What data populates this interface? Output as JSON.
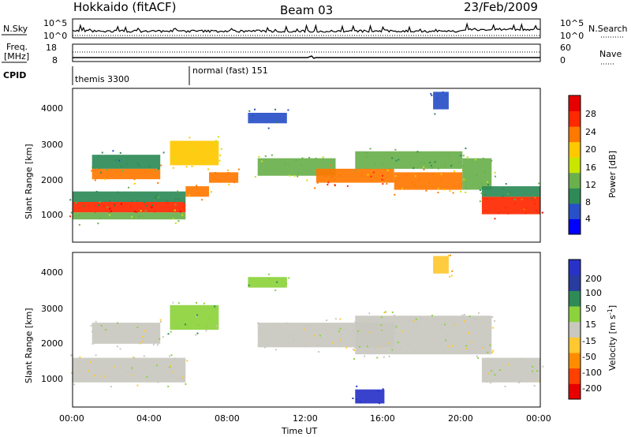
{
  "header": {
    "title_left": "Hokkaido (fitACF)",
    "title_center": "Beam 03",
    "title_right": "23/Feb/2009"
  },
  "strip_panels": {
    "nsky_label": "N.Sky",
    "nsky_ticks": [
      "10^5",
      "10^0"
    ],
    "nsearch_label": "N.Search",
    "nsearch_ticks": [
      "10^5",
      "10^0"
    ],
    "freq_label_line1": "Freq.",
    "freq_label_line2": "[MHz]",
    "freq_ticks": [
      "18",
      "8"
    ],
    "nave_label": "Nave",
    "nave_ticks": [
      "60",
      "0"
    ],
    "cpid_label": "CPID",
    "cpid_modes": [
      {
        "name": "themis 3300",
        "start_hour": 0.0
      },
      {
        "name": "normal (fast) 151",
        "start_hour": 6.0
      }
    ]
  },
  "axes": {
    "ylabel": "Slant Range [km]",
    "xlabel": "Time UT",
    "y_ticks": [
      "1000",
      "2000",
      "3000",
      "4000"
    ],
    "x_ticks": [
      "00:00",
      "04:00",
      "08:00",
      "12:00",
      "16:00",
      "20:00",
      "00:00"
    ]
  },
  "colorbars": {
    "power_label": "Power [dB]",
    "power_ticks": [
      "4",
      "8",
      "12",
      "16",
      "20",
      "24",
      "28"
    ],
    "velocity_label_main": "Velocity [m s",
    "velocity_label_sup": "-1",
    "velocity_label_end": "]",
    "velocity_ticks": [
      "-200",
      "-100",
      "-50",
      "-15",
      "15",
      "50",
      "100",
      "200"
    ]
  },
  "chart_data": [
    {
      "type": "heatmap",
      "panel": "power",
      "x_unit": "hours UT",
      "xlim": [
        0,
        24
      ],
      "ylim": [
        200,
        4600
      ],
      "colorscale": {
        "min": 0,
        "max": 32,
        "colors": [
          "#0000ff",
          "#2850c8",
          "#2e8b57",
          "#6ab04c",
          "#c8e600",
          "#ffc800",
          "#ff7800",
          "#ff2800",
          "#e60000"
        ]
      },
      "regions": [
        {
          "t0": 0.0,
          "t1": 5.8,
          "r0": 1050,
          "r1": 1350,
          "value": 28
        },
        {
          "t0": 0.0,
          "t1": 5.8,
          "r0": 850,
          "r1": 1050,
          "value": 14
        },
        {
          "t0": 0.0,
          "t1": 5.8,
          "r0": 1350,
          "r1": 1650,
          "value": 10
        },
        {
          "t0": 5.8,
          "t1": 7.0,
          "r0": 1500,
          "r1": 1800,
          "value": 22
        },
        {
          "t0": 1.0,
          "t1": 4.5,
          "r0": 2000,
          "r1": 2300,
          "value": 22
        },
        {
          "t0": 1.0,
          "t1": 4.5,
          "r0": 2300,
          "r1": 2700,
          "value": 9
        },
        {
          "t0": 5.0,
          "t1": 7.5,
          "r0": 2400,
          "r1": 3100,
          "value": 18
        },
        {
          "t0": 7.0,
          "t1": 8.5,
          "r0": 1900,
          "r1": 2200,
          "value": 22
        },
        {
          "t0": 9.5,
          "t1": 13.5,
          "r0": 2100,
          "r1": 2600,
          "value": 14
        },
        {
          "t0": 12.5,
          "t1": 16.5,
          "r0": 1900,
          "r1": 2300,
          "value": 24
        },
        {
          "t0": 14.5,
          "t1": 20.0,
          "r0": 2300,
          "r1": 2800,
          "value": 12
        },
        {
          "t0": 16.5,
          "t1": 20.0,
          "r0": 1700,
          "r1": 2200,
          "value": 22
        },
        {
          "t0": 20.0,
          "t1": 21.5,
          "r0": 1700,
          "r1": 2600,
          "value": 14
        },
        {
          "t0": 21.0,
          "t1": 24.0,
          "r0": 1000,
          "r1": 1500,
          "value": 26
        },
        {
          "t0": 21.0,
          "t1": 24.0,
          "r0": 1500,
          "r1": 1800,
          "value": 10
        },
        {
          "t0": 18.5,
          "t1": 19.3,
          "r0": 4000,
          "r1": 4500,
          "value": 6
        },
        {
          "t0": 9.0,
          "t1": 11.0,
          "r0": 3600,
          "r1": 3900,
          "value": 7
        }
      ]
    },
    {
      "type": "heatmap",
      "panel": "velocity",
      "x_unit": "hours UT",
      "xlim": [
        0,
        24
      ],
      "ylim": [
        200,
        4600
      ],
      "colorscale": {
        "min": -250,
        "max": 250,
        "colors": [
          "#e60000",
          "#ff4000",
          "#ff8c00",
          "#ffc830",
          "#c8c8c0",
          "#8cd23c",
          "#2e8b57",
          "#283ca0",
          "#2832c8"
        ]
      },
      "regions": [
        {
          "t0": 0.0,
          "t1": 5.8,
          "r0": 900,
          "r1": 1600,
          "value": 0
        },
        {
          "t0": 1.0,
          "t1": 4.5,
          "r0": 2000,
          "r1": 2600,
          "value": 0
        },
        {
          "t0": 5.0,
          "t1": 7.5,
          "r0": 2400,
          "r1": 3100,
          "value": 50
        },
        {
          "t0": 9.5,
          "t1": 16.5,
          "r0": 1900,
          "r1": 2600,
          "value": 0
        },
        {
          "t0": 14.5,
          "t1": 21.5,
          "r0": 1700,
          "r1": 2800,
          "value": 0
        },
        {
          "t0": 21.0,
          "t1": 24.0,
          "r0": 900,
          "r1": 1600,
          "value": 0
        },
        {
          "t0": 18.5,
          "t1": 19.3,
          "r0": 4000,
          "r1": 4500,
          "value": -80
        },
        {
          "t0": 9.0,
          "t1": 11.0,
          "r0": 3600,
          "r1": 3900,
          "value": 60
        },
        {
          "t0": 14.5,
          "t1": 16.0,
          "r0": 300,
          "r1": 700,
          "value": 200
        }
      ]
    }
  ]
}
